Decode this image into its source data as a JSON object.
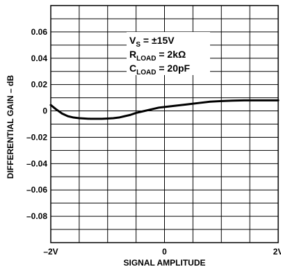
{
  "chart_data": {
    "type": "line",
    "title": "",
    "xlabel": "SIGNAL AMPLITUDE",
    "ylabel": "DIFFERENTIAL GAIN – dB",
    "xlim": [
      -2,
      2
    ],
    "ylim": [
      -0.1,
      0.08
    ],
    "grid": true,
    "x_ticks": [
      {
        "value": -2,
        "label": "–2V"
      },
      {
        "value": 0,
        "label": "0"
      },
      {
        "value": 2,
        "label": "2V"
      }
    ],
    "y_ticks": [
      {
        "value": 0.06,
        "label": "0.06"
      },
      {
        "value": 0.04,
        "label": "0.04"
      },
      {
        "value": 0.02,
        "label": "0.02"
      },
      {
        "value": 0,
        "label": "0"
      },
      {
        "value": -0.02,
        "label": "–0.02"
      },
      {
        "value": -0.04,
        "label": "–0.04"
      },
      {
        "value": -0.06,
        "label": "–0.06"
      },
      {
        "value": -0.08,
        "label": "–0.08"
      }
    ],
    "annotations": [
      {
        "main": "V",
        "sub": "S",
        "rest": " = ±15V"
      },
      {
        "main": "R",
        "sub": "LOAD",
        "rest": " = 2kΩ"
      },
      {
        "main": "C",
        "sub": "LOAD",
        "rest": " = 20pF"
      }
    ],
    "series": [
      {
        "x": [
          -2.0,
          -1.9,
          -1.8,
          -1.7,
          -1.6,
          -1.5,
          -1.4,
          -1.3,
          -1.2,
          -1.1,
          -1.0,
          -0.9,
          -0.8,
          -0.7,
          -0.6,
          -0.5,
          -0.4,
          -0.3,
          -0.2,
          -0.1,
          0.0,
          0.2,
          0.4,
          0.6,
          0.8,
          1.0,
          1.2,
          1.4,
          1.6,
          1.8,
          2.0
        ],
        "y": [
          0.0045,
          0.001,
          -0.002,
          -0.004,
          -0.005,
          -0.0055,
          -0.0058,
          -0.006,
          -0.006,
          -0.006,
          -0.0058,
          -0.0055,
          -0.005,
          -0.004,
          -0.003,
          -0.0015,
          -0.0005,
          0.0005,
          0.0015,
          0.0025,
          0.003,
          0.004,
          0.005,
          0.006,
          0.007,
          0.0075,
          0.0078,
          0.008,
          0.008,
          0.008,
          0.008
        ]
      }
    ]
  }
}
